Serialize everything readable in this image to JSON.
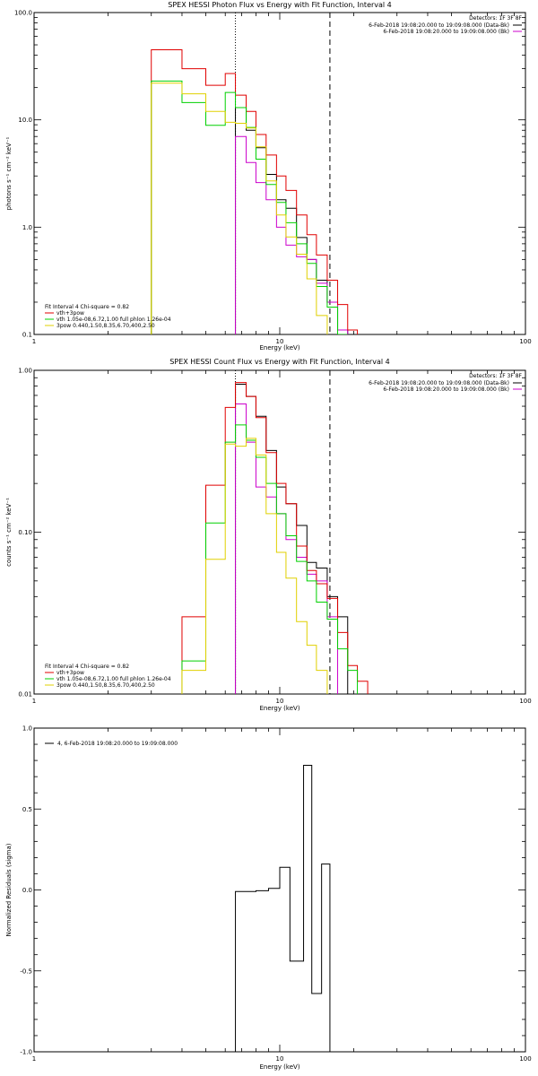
{
  "chart_data": [
    {
      "type": "line",
      "title": "SPEX HESSI Photon Flux vs Energy with Fit Function, Interval 4",
      "xlabel": "Energy (keV)",
      "ylabel": "photons s⁻¹ cm⁻² keV⁻¹",
      "xscale": "log",
      "yscale": "log",
      "xlim": [
        1,
        100
      ],
      "ylim": [
        0.1,
        100
      ],
      "xticks": [
        "1",
        "10",
        "100"
      ],
      "yticks": [
        "100.0",
        "10.0",
        "1.0",
        "0.1"
      ],
      "vlines": [
        {
          "x": 6.6,
          "style": "dotted",
          "color": "#000000"
        },
        {
          "x": 16.0,
          "style": "dashed",
          "color": "#000000"
        }
      ],
      "legend_top_right": {
        "header": "Detectors: 1F 3F 8F",
        "entries": [
          {
            "label": "6-Feb-2018 19:08:20.000 to 19:09:08.000 (Data-Bk)",
            "color": "#000000"
          },
          {
            "label": "6-Feb-2018 19:08:20.000 to 19:09:08.000 (Bk)",
            "color": "#cc00cc"
          }
        ]
      },
      "legend_bottom_left": {
        "header": "Fit Interval 4   Chi-square = 0.82",
        "entries": [
          {
            "label": "vth+3pow",
            "color": "#e00000"
          },
          {
            "label": "vth 1.05e-08,6.72,1.00  full phlon 1.26e-04",
            "color": "#00d000"
          },
          {
            "label": "3pow 0.440,1.50,8.35,6.70,400,2.50",
            "color": "#e0d000"
          }
        ]
      },
      "edges": [
        3,
        4,
        5,
        6,
        6.6,
        7.3,
        8,
        8.8,
        9.7,
        10.6,
        11.7,
        12.9,
        14.1,
        15.6,
        17.2,
        18.9,
        20.7,
        22.8
      ],
      "series": [
        {
          "name": "Data-Bk",
          "color": "#000000",
          "style": "steps",
          "values": [
            null,
            null,
            null,
            null,
            13.0,
            8.0,
            5.5,
            3.1,
            1.8,
            1.5,
            0.8,
            0.5,
            0.32,
            0.2,
            0.11,
            null,
            null
          ]
        },
        {
          "name": "Bk",
          "color": "#cc00cc",
          "style": "steps",
          "values": [
            null,
            null,
            null,
            null,
            7.0,
            4.0,
            2.6,
            1.8,
            1.0,
            0.68,
            0.53,
            0.5,
            0.3,
            0.2,
            0.11,
            null,
            null
          ]
        },
        {
          "name": "vth+3pow",
          "color": "#e00000",
          "style": "steps",
          "values": [
            45,
            30,
            21,
            27,
            17,
            12,
            7.3,
            4.7,
            3.0,
            2.2,
            1.3,
            0.85,
            0.55,
            0.32,
            0.19,
            0.11,
            null
          ]
        },
        {
          "name": "vth",
          "color": "#00d000",
          "style": "steps",
          "values": [
            23,
            14.5,
            8.9,
            18,
            13,
            8.5,
            4.3,
            2.5,
            1.7,
            1.1,
            0.7,
            0.46,
            0.28,
            0.18,
            0.1,
            null,
            null
          ]
        },
        {
          "name": "3pow",
          "color": "#e0d000",
          "style": "steps",
          "values": [
            22,
            17.5,
            12,
            9.5,
            9.3,
            8.4,
            5.6,
            2.7,
            1.3,
            0.81,
            0.56,
            0.33,
            0.15,
            null,
            null,
            null,
            null
          ]
        }
      ]
    },
    {
      "type": "line",
      "title": "SPEX HESSI Count Flux vs Energy with Fit Function, Interval 4",
      "xlabel": "Energy (keV)",
      "ylabel": "counts s⁻¹ cm⁻² keV⁻¹",
      "xscale": "log",
      "yscale": "log",
      "xlim": [
        1,
        100
      ],
      "ylim": [
        0.01,
        1
      ],
      "xticks": [
        "1",
        "10",
        "100"
      ],
      "yticks": [
        "1.00",
        "0.10",
        "0.01"
      ],
      "vlines": [
        {
          "x": 6.6,
          "style": "dotted",
          "color": "#000000"
        },
        {
          "x": 16.0,
          "style": "dashed",
          "color": "#000000"
        }
      ],
      "legend_top_right": {
        "header": "Detectors: 1F 3F 8F",
        "entries": [
          {
            "label": "6-Feb-2018 19:08:20.000 to 19:09:08.000 (Data-Bk)",
            "color": "#000000"
          },
          {
            "label": "6-Feb-2018 19:08:20.000 to 19:09:08.000 (Bk)",
            "color": "#cc00cc"
          }
        ]
      },
      "legend_bottom_left": {
        "header": "Fit Interval 4   Chi-square = 0.82",
        "entries": [
          {
            "label": "vth+3pow",
            "color": "#e00000"
          },
          {
            "label": "vth 1.05e-08,6.72,1.00  full phlon 1.26e-04",
            "color": "#00d000"
          },
          {
            "label": "3pow 0.440,1.50,8.35,6.70,400,2.50",
            "color": "#e0d000"
          }
        ]
      },
      "edges": [
        4,
        5,
        6,
        6.6,
        7.3,
        8,
        8.8,
        9.7,
        10.6,
        11.7,
        12.9,
        14.1,
        15.6,
        17.2,
        18.9,
        20.7,
        22.8
      ],
      "series": [
        {
          "name": "Data-Bk",
          "color": "#000000",
          "style": "steps",
          "values": [
            null,
            null,
            null,
            0.82,
            0.69,
            0.52,
            0.32,
            0.19,
            0.15,
            0.11,
            0.065,
            0.06,
            0.04,
            0.03,
            null,
            null
          ]
        },
        {
          "name": "Bk",
          "color": "#cc00cc",
          "style": "steps",
          "values": [
            null,
            null,
            null,
            0.62,
            0.36,
            0.19,
            0.165,
            0.13,
            0.09,
            0.07,
            0.055,
            0.05,
            0.03,
            null,
            null,
            null
          ]
        },
        {
          "name": "vth+3pow",
          "color": "#e00000",
          "style": "steps",
          "values": [
            0.03,
            0.195,
            0.59,
            0.84,
            0.69,
            0.51,
            0.31,
            0.2,
            0.15,
            0.082,
            0.058,
            0.048,
            0.039,
            0.024,
            0.015,
            0.012
          ]
        },
        {
          "name": "vth",
          "color": "#00d000",
          "style": "steps",
          "values": [
            0.016,
            0.114,
            0.36,
            0.46,
            0.37,
            0.29,
            0.2,
            0.13,
            0.095,
            0.066,
            0.05,
            0.037,
            0.029,
            0.019,
            0.014,
            null
          ]
        },
        {
          "name": "3pow",
          "color": "#e0d000",
          "style": "steps",
          "values": [
            0.014,
            0.068,
            0.35,
            0.34,
            0.38,
            0.3,
            0.13,
            0.075,
            0.052,
            0.028,
            0.02,
            0.014,
            null,
            null,
            null,
            null
          ]
        }
      ]
    },
    {
      "type": "line",
      "title": "",
      "xlabel": "Energy (keV)",
      "ylabel": "Normalized Residuals (sigma)",
      "xscale": "log",
      "yscale": "linear",
      "xlim": [
        1,
        100
      ],
      "ylim": [
        -1,
        1
      ],
      "xticks": [
        "1",
        "10",
        "100"
      ],
      "yticks": [
        "1.0",
        "0.5",
        "0.0",
        "-0.5",
        "-1.0"
      ],
      "legend_top_left": {
        "entries": [
          {
            "label": "4,  6-Feb-2018 19:08:20.000 to 19:09:08.000",
            "color": "#000000"
          }
        ]
      },
      "edges": [
        6.6,
        8.0,
        9.0,
        10.0,
        11.0,
        12.5,
        13.5,
        14.8,
        16.0
      ],
      "series": [
        {
          "name": "4,  6-Feb-2018 19:08:20.000 to 19:09:08.000",
          "color": "#000000",
          "style": "residual-steps",
          "values": [
            -0.01,
            -0.005,
            0.01,
            0.14,
            -0.44,
            0.77,
            -0.64,
            0.16
          ]
        }
      ]
    }
  ]
}
